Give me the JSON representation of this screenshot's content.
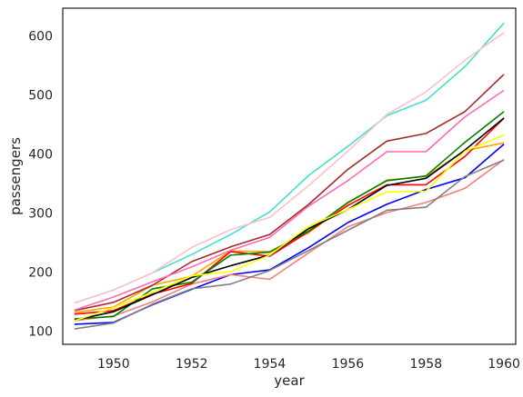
{
  "chart_data": {
    "type": "line",
    "xlabel": "year",
    "ylabel": "passengers",
    "xlim": [
      1948.7,
      1960.3
    ],
    "ylim": [
      78,
      647
    ],
    "x_ticks": [
      "1950",
      "1952",
      "1954",
      "1956",
      "1958",
      "1960"
    ],
    "y_ticks": [
      "100",
      "200",
      "300",
      "400",
      "500",
      "600"
    ],
    "grid": false,
    "legend": "none",
    "x": [
      1949,
      1950,
      1951,
      1952,
      1953,
      1954,
      1955,
      1956,
      1957,
      1958,
      1959,
      1960
    ],
    "series": [
      {
        "color": "#0000ff",
        "values": [
          112,
          115,
          145,
          171,
          196,
          204,
          242,
          284,
          315,
          340,
          360,
          417
        ]
      },
      {
        "color": "#f08080",
        "values": [
          118,
          126,
          150,
          180,
          196,
          188,
          233,
          277,
          301,
          318,
          342,
          391
        ]
      },
      {
        "color": "#ffa500",
        "values": [
          132,
          141,
          178,
          193,
          236,
          235,
          267,
          317,
          356,
          362,
          406,
          419
        ]
      },
      {
        "color": "#ff0000",
        "values": [
          129,
          135,
          163,
          181,
          235,
          227,
          269,
          313,
          348,
          348,
          396,
          461
        ]
      },
      {
        "color": "#008000",
        "values": [
          121,
          125,
          172,
          183,
          229,
          234,
          270,
          318,
          355,
          363,
          420,
          472
        ]
      },
      {
        "color": "#a52a2a",
        "values": [
          135,
          149,
          178,
          218,
          243,
          264,
          315,
          374,
          422,
          435,
          472,
          535
        ]
      },
      {
        "color": "#40e0d0",
        "values": [
          148,
          170,
          199,
          230,
          264,
          302,
          364,
          413,
          465,
          491,
          548,
          622
        ]
      },
      {
        "color": "#ffc0cb",
        "values": [
          148,
          170,
          199,
          242,
          272,
          293,
          347,
          405,
          467,
          505,
          559,
          606
        ]
      },
      {
        "color": "#ff69b4",
        "values": [
          136,
          158,
          184,
          209,
          237,
          259,
          312,
          355,
          404,
          404,
          463,
          508
        ]
      },
      {
        "color": "#000000",
        "values": [
          119,
          133,
          162,
          191,
          211,
          229,
          274,
          306,
          347,
          359,
          407,
          461
        ]
      },
      {
        "color": "#808080",
        "values": [
          104,
          114,
          146,
          172,
          180,
          203,
          237,
          271,
          305,
          310,
          362,
          390
        ]
      },
      {
        "color": "#ffff00",
        "values": [
          118,
          140,
          166,
          194,
          201,
          229,
          278,
          306,
          336,
          337,
          405,
          432
        ]
      }
    ]
  }
}
